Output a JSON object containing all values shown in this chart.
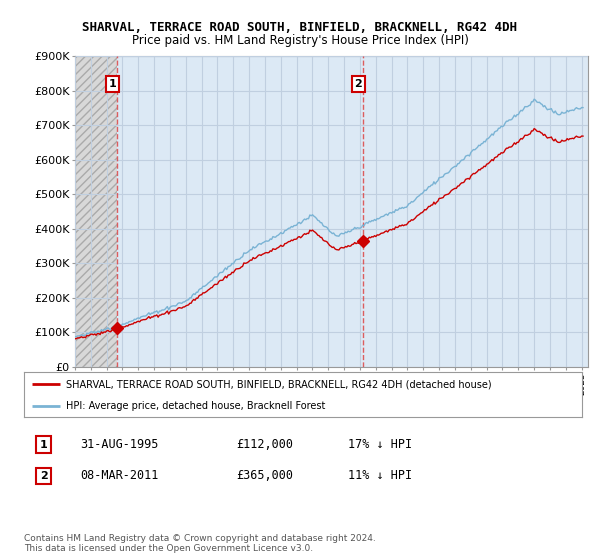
{
  "title": "SHARVAL, TERRACE ROAD SOUTH, BINFIELD, BRACKNELL, RG42 4DH",
  "subtitle": "Price paid vs. HM Land Registry's House Price Index (HPI)",
  "ylim": [
    0,
    900000
  ],
  "yticks": [
    0,
    100000,
    200000,
    300000,
    400000,
    500000,
    600000,
    700000,
    800000,
    900000
  ],
  "ytick_labels": [
    "£0",
    "£100K",
    "£200K",
    "£300K",
    "£400K",
    "£500K",
    "£600K",
    "£700K",
    "£800K",
    "£900K"
  ],
  "sale1_x": 1995.67,
  "sale1_y": 112000,
  "sale2_x": 2011.18,
  "sale2_y": 365000,
  "hpi_line_color": "#7ab3d4",
  "sale_line_color": "#cc0000",
  "sale_marker_color": "#cc0000",
  "annotation1_text": "1",
  "annotation2_text": "2",
  "legend_label_red": "SHARVAL, TERRACE ROAD SOUTH, BINFIELD, BRACKNELL, RG42 4DH (detached house)",
  "legend_label_blue": "HPI: Average price, detached house, Bracknell Forest",
  "table_row1": [
    "1",
    "31-AUG-1995",
    "£112,000",
    "17% ↓ HPI"
  ],
  "table_row2": [
    "2",
    "08-MAR-2011",
    "£365,000",
    "11% ↓ HPI"
  ],
  "footnote": "Contains HM Land Registry data © Crown copyright and database right 2024.\nThis data is licensed under the Open Government Licence v3.0.",
  "plot_bg_blue": "#dce9f5",
  "plot_bg_hatch": "#d8d8d8",
  "grid_color": "#c0cfe0",
  "xlim_start": 1993.0,
  "xlim_end": 2025.4
}
